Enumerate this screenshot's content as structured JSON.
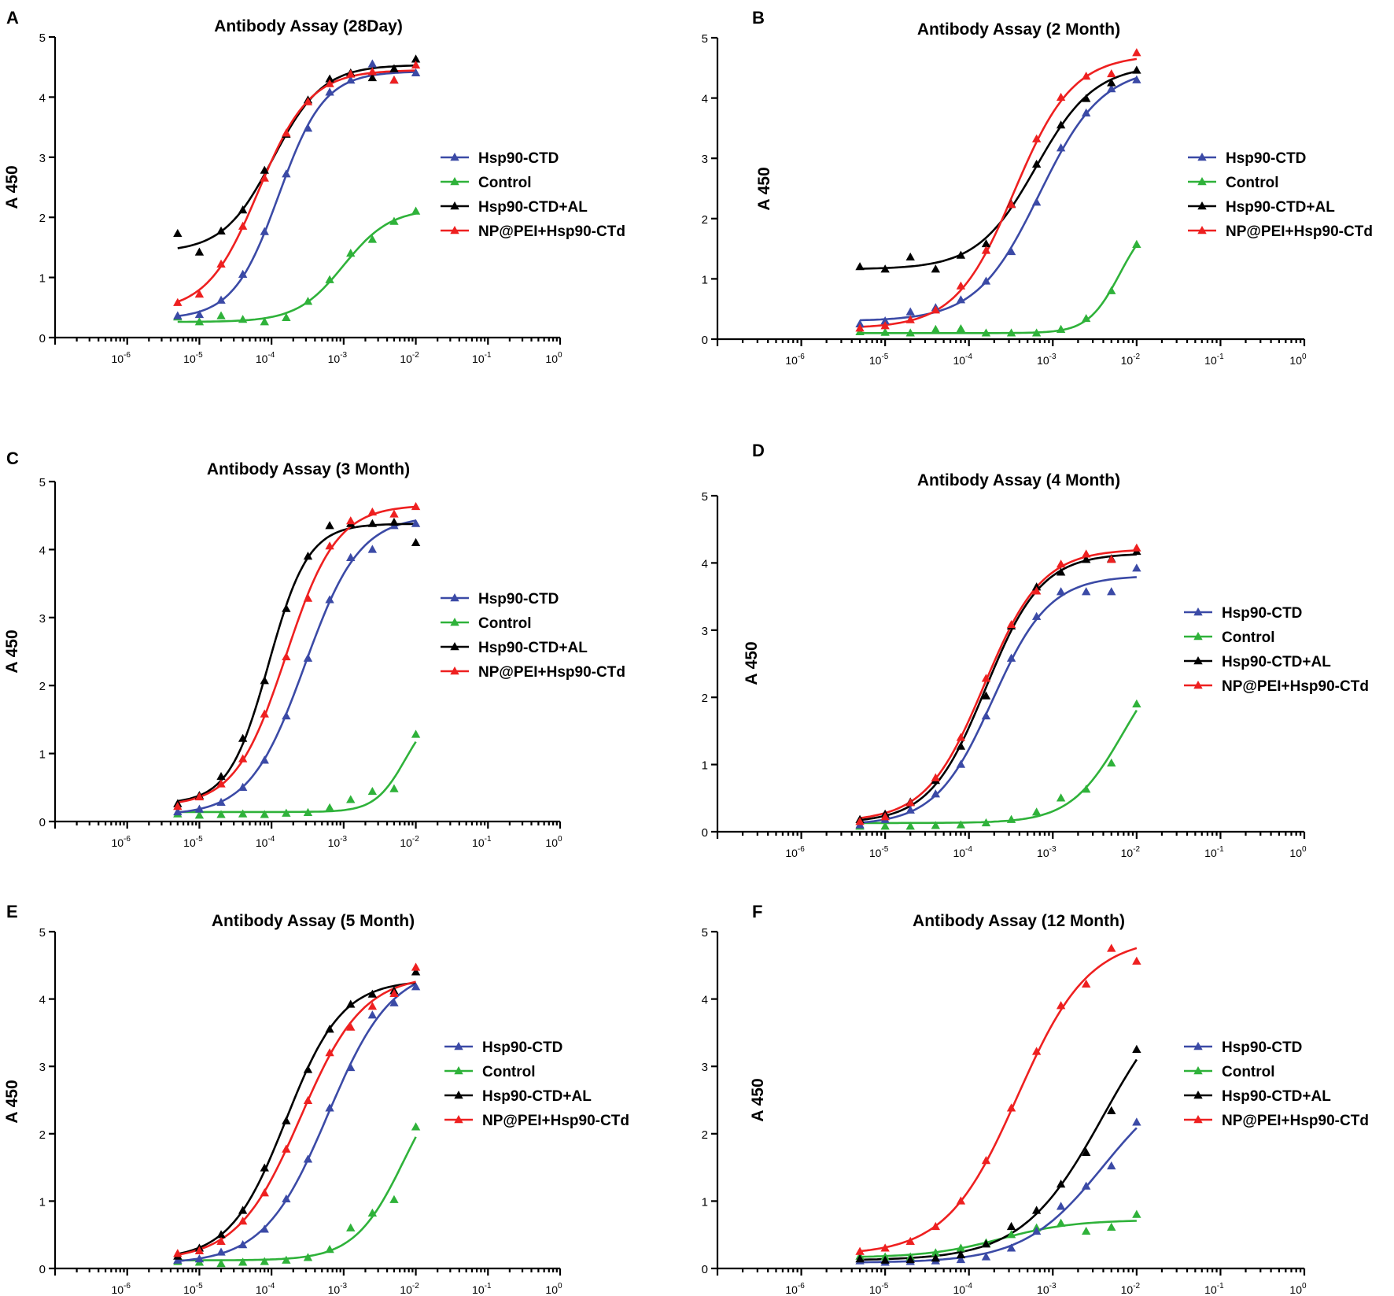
{
  "colors": {
    "Hsp90-CTD": "#3b4aa6",
    "Control": "#2fb23a",
    "Hsp90-CTD+AL": "#000000",
    "NP@PEI+Hsp90-CTd": "#ee2020"
  },
  "chart_data": [
    {
      "type": "scatter",
      "panel": "A",
      "title": "Antibody Assay (28Day)",
      "ylabel": "A 450",
      "xlabel": "",
      "xscale": "log",
      "xlim": [
        1e-07,
        1
      ],
      "ylim": [
        0,
        5
      ],
      "yticks": [
        0,
        1,
        2,
        3,
        4,
        5
      ],
      "xticks": [
        {
          "base": "10",
          "exp": "-6"
        },
        {
          "base": "10",
          "exp": "-5"
        },
        {
          "base": "10",
          "exp": "-4"
        },
        {
          "base": "10",
          "exp": "-3"
        },
        {
          "base": "10",
          "exp": "-2"
        },
        {
          "base": "10",
          "exp": "-1"
        },
        {
          "base": "10",
          "exp": "0"
        }
      ],
      "x": [
        5e-06,
        1e-05,
        2e-05,
        4e-05,
        8e-05,
        0.00016,
        0.00032,
        0.00064,
        0.00125,
        0.0025,
        0.005,
        0.01
      ],
      "legend_position": "right",
      "series": [
        {
          "name": "Hsp90-CTD",
          "values": [
            0.36,
            0.38,
            0.62,
            1.05,
            1.76,
            2.72,
            3.48,
            4.08,
            4.28,
            4.55,
            4.28,
            4.4
          ]
        },
        {
          "name": "Control",
          "values": [
            0.34,
            0.26,
            0.36,
            0.3,
            0.26,
            0.33,
            0.6,
            0.96,
            1.4,
            1.63,
            1.93,
            2.1
          ]
        },
        {
          "name": "Hsp90-CTD+AL",
          "values": [
            1.73,
            1.42,
            1.77,
            2.12,
            2.78,
            3.38,
            3.95,
            4.3,
            4.4,
            4.32,
            4.47,
            4.63
          ]
        },
        {
          "name": "NP@PEI+Hsp90-CTd",
          "values": [
            0.58,
            0.72,
            1.22,
            1.85,
            2.65,
            3.4,
            3.92,
            4.22,
            4.38,
            4.42,
            4.28,
            4.53
          ]
        }
      ]
    },
    {
      "type": "scatter",
      "panel": "B",
      "title": "Antibody Assay (2 Month)",
      "ylabel": "A 450",
      "xlabel": "",
      "xscale": "log",
      "xlim": [
        1e-07,
        1
      ],
      "ylim": [
        0,
        5
      ],
      "yticks": [
        0,
        1,
        2,
        3,
        4,
        5
      ],
      "xticks": [
        {
          "base": "10",
          "exp": "-6"
        },
        {
          "base": "10",
          "exp": "-5"
        },
        {
          "base": "10",
          "exp": "-4"
        },
        {
          "base": "10",
          "exp": "-3"
        },
        {
          "base": "10",
          "exp": "-2"
        },
        {
          "base": "10",
          "exp": "-1"
        },
        {
          "base": "10",
          "exp": "0"
        }
      ],
      "x": [
        5e-06,
        1e-05,
        2e-05,
        4e-05,
        8e-05,
        0.00016,
        0.00032,
        0.00064,
        0.00125,
        0.0025,
        0.005,
        0.01
      ],
      "legend_position": "right",
      "series": [
        {
          "name": "Hsp90-CTD",
          "values": [
            0.25,
            0.3,
            0.45,
            0.52,
            0.65,
            0.96,
            1.45,
            2.27,
            3.17,
            3.75,
            4.15,
            4.3
          ]
        },
        {
          "name": "Control",
          "values": [
            0.12,
            0.11,
            0.1,
            0.16,
            0.17,
            0.1,
            0.1,
            0.1,
            0.16,
            0.34,
            0.8,
            1.57
          ]
        },
        {
          "name": "Hsp90-CTD+AL",
          "values": [
            1.2,
            1.16,
            1.36,
            1.16,
            1.39,
            1.58,
            2.24,
            2.9,
            3.55,
            3.99,
            4.25,
            4.46
          ]
        },
        {
          "name": "NP@PEI+Hsp90-CTd",
          "values": [
            0.18,
            0.22,
            0.32,
            0.48,
            0.88,
            1.47,
            2.23,
            3.32,
            4.01,
            4.36,
            4.4,
            4.75
          ]
        }
      ]
    },
    {
      "type": "scatter",
      "panel": "C",
      "title": "Antibody Assay (3 Month)",
      "ylabel": "A 450",
      "xlabel": "",
      "xscale": "log",
      "xlim": [
        1e-07,
        1
      ],
      "ylim": [
        0,
        5
      ],
      "yticks": [
        0,
        1,
        2,
        3,
        4,
        5
      ],
      "xticks": [
        {
          "base": "10",
          "exp": "-6"
        },
        {
          "base": "10",
          "exp": "-5"
        },
        {
          "base": "10",
          "exp": "-4"
        },
        {
          "base": "10",
          "exp": "-3"
        },
        {
          "base": "10",
          "exp": "-2"
        },
        {
          "base": "10",
          "exp": "-1"
        },
        {
          "base": "10",
          "exp": "0"
        }
      ],
      "x": [
        5e-06,
        1e-05,
        2e-05,
        4e-05,
        8e-05,
        0.00016,
        0.00032,
        0.00064,
        0.00125,
        0.0025,
        0.005,
        0.01
      ],
      "legend_position": "right",
      "series": [
        {
          "name": "Hsp90-CTD",
          "values": [
            0.14,
            0.18,
            0.28,
            0.5,
            0.9,
            1.55,
            2.4,
            3.26,
            3.88,
            4.0,
            4.35,
            4.38
          ]
        },
        {
          "name": "Control",
          "values": [
            0.11,
            0.09,
            0.1,
            0.11,
            0.1,
            0.12,
            0.13,
            0.2,
            0.32,
            0.44,
            0.48,
            1.28
          ]
        },
        {
          "name": "Hsp90-CTD+AL",
          "values": [
            0.26,
            0.38,
            0.66,
            1.22,
            2.07,
            3.13,
            3.9,
            4.35,
            4.38,
            4.38,
            4.4,
            4.1
          ]
        },
        {
          "name": "NP@PEI+Hsp90-CTd",
          "values": [
            0.22,
            0.36,
            0.55,
            0.92,
            1.58,
            2.42,
            3.28,
            4.05,
            4.42,
            4.55,
            4.52,
            4.63
          ]
        }
      ]
    },
    {
      "type": "scatter",
      "panel": "D",
      "title": "Antibody Assay (4 Month)",
      "ylabel": "A 450",
      "xlabel": "",
      "xscale": "log",
      "xlim": [
        1e-07,
        1
      ],
      "ylim": [
        0,
        5
      ],
      "yticks": [
        0,
        1,
        2,
        3,
        4,
        5
      ],
      "xticks": [
        {
          "base": "10",
          "exp": "-6"
        },
        {
          "base": "10",
          "exp": "-5"
        },
        {
          "base": "10",
          "exp": "-4"
        },
        {
          "base": "10",
          "exp": "-3"
        },
        {
          "base": "10",
          "exp": "-2"
        },
        {
          "base": "10",
          "exp": "-1"
        },
        {
          "base": "10",
          "exp": "0"
        }
      ],
      "x": [
        5e-06,
        1e-05,
        2e-05,
        4e-05,
        8e-05,
        0.00016,
        0.00032,
        0.00064,
        0.00125,
        0.0025,
        0.005,
        0.01
      ],
      "legend_position": "right",
      "series": [
        {
          "name": "Hsp90-CTD",
          "values": [
            0.1,
            0.18,
            0.32,
            0.56,
            1.0,
            1.72,
            2.58,
            3.2,
            3.57,
            3.57,
            3.57,
            3.92
          ]
        },
        {
          "name": "Control",
          "values": [
            0.08,
            0.08,
            0.08,
            0.09,
            0.1,
            0.13,
            0.18,
            0.29,
            0.5,
            0.63,
            1.02,
            1.9
          ]
        },
        {
          "name": "Hsp90-CTD+AL",
          "values": [
            0.18,
            0.26,
            0.44,
            0.76,
            1.27,
            2.02,
            3.06,
            3.64,
            3.86,
            4.05,
            4.06,
            4.17
          ]
        },
        {
          "name": "NP@PEI+Hsp90-CTd",
          "values": [
            0.15,
            0.22,
            0.43,
            0.8,
            1.4,
            2.28,
            3.08,
            3.58,
            3.98,
            4.13,
            4.05,
            4.22
          ]
        }
      ]
    },
    {
      "type": "scatter",
      "panel": "E",
      "title": "Antibody Assay (5 Month)",
      "ylabel": "A 450",
      "xlabel": "",
      "xscale": "log",
      "xlim": [
        1e-07,
        1
      ],
      "ylim": [
        0,
        5
      ],
      "yticks": [
        0,
        1,
        2,
        3,
        4,
        5
      ],
      "xticks": [
        {
          "base": "10",
          "exp": "-6"
        },
        {
          "base": "10",
          "exp": "-5"
        },
        {
          "base": "10",
          "exp": "-4"
        },
        {
          "base": "10",
          "exp": "-3"
        },
        {
          "base": "10",
          "exp": "-2"
        },
        {
          "base": "10",
          "exp": "-1"
        },
        {
          "base": "10",
          "exp": "0"
        }
      ],
      "x": [
        5e-06,
        1e-05,
        2e-05,
        4e-05,
        8e-05,
        0.00016,
        0.00032,
        0.00064,
        0.00125,
        0.0025,
        0.005,
        0.01
      ],
      "legend_position": "right",
      "series": [
        {
          "name": "Hsp90-CTD",
          "values": [
            0.12,
            0.14,
            0.24,
            0.35,
            0.58,
            1.03,
            1.62,
            2.38,
            2.98,
            3.76,
            3.94,
            4.18
          ]
        },
        {
          "name": "Control",
          "values": [
            0.1,
            0.09,
            0.07,
            0.09,
            0.1,
            0.12,
            0.16,
            0.28,
            0.6,
            0.82,
            1.02,
            2.1
          ]
        },
        {
          "name": "Hsp90-CTD+AL",
          "values": [
            0.18,
            0.3,
            0.5,
            0.86,
            1.49,
            2.19,
            2.95,
            3.55,
            3.92,
            4.07,
            4.12,
            4.4
          ]
        },
        {
          "name": "NP@PEI+Hsp90-CTd",
          "values": [
            0.22,
            0.26,
            0.4,
            0.7,
            1.12,
            1.77,
            2.49,
            3.2,
            3.58,
            3.89,
            4.08,
            4.47
          ]
        }
      ]
    },
    {
      "type": "scatter",
      "panel": "F",
      "title": "Antibody Assay (12 Month)",
      "ylabel": "A 450",
      "xlabel": "",
      "xscale": "log",
      "xlim": [
        1e-07,
        1
      ],
      "ylim": [
        0,
        5
      ],
      "yticks": [
        0,
        1,
        2,
        3,
        4,
        5
      ],
      "xticks": [
        {
          "base": "10",
          "exp": "-6"
        },
        {
          "base": "10",
          "exp": "-5"
        },
        {
          "base": "10",
          "exp": "-4"
        },
        {
          "base": "10",
          "exp": "-3"
        },
        {
          "base": "10",
          "exp": "-2"
        },
        {
          "base": "10",
          "exp": "-1"
        },
        {
          "base": "10",
          "exp": "0"
        }
      ],
      "x": [
        5e-06,
        1e-05,
        2e-05,
        4e-05,
        8e-05,
        0.00016,
        0.00032,
        0.00064,
        0.00125,
        0.0025,
        0.005,
        0.01
      ],
      "legend_position": "right",
      "series": [
        {
          "name": "Hsp90-CTD",
          "values": [
            0.11,
            0.09,
            0.1,
            0.11,
            0.13,
            0.17,
            0.3,
            0.55,
            0.92,
            1.22,
            1.52,
            2.17
          ]
        },
        {
          "name": "Control",
          "values": [
            0.18,
            0.17,
            0.17,
            0.23,
            0.3,
            0.38,
            0.5,
            0.6,
            0.67,
            0.55,
            0.61,
            0.8
          ]
        },
        {
          "name": "Hsp90-CTD+AL",
          "values": [
            0.14,
            0.12,
            0.13,
            0.15,
            0.2,
            0.36,
            0.62,
            0.86,
            1.25,
            1.72,
            2.34,
            3.25
          ]
        },
        {
          "name": "NP@PEI+Hsp90-CTd",
          "values": [
            0.25,
            0.3,
            0.4,
            0.62,
            1.0,
            1.6,
            2.38,
            3.22,
            3.9,
            4.22,
            4.75,
            4.56
          ]
        }
      ]
    }
  ]
}
